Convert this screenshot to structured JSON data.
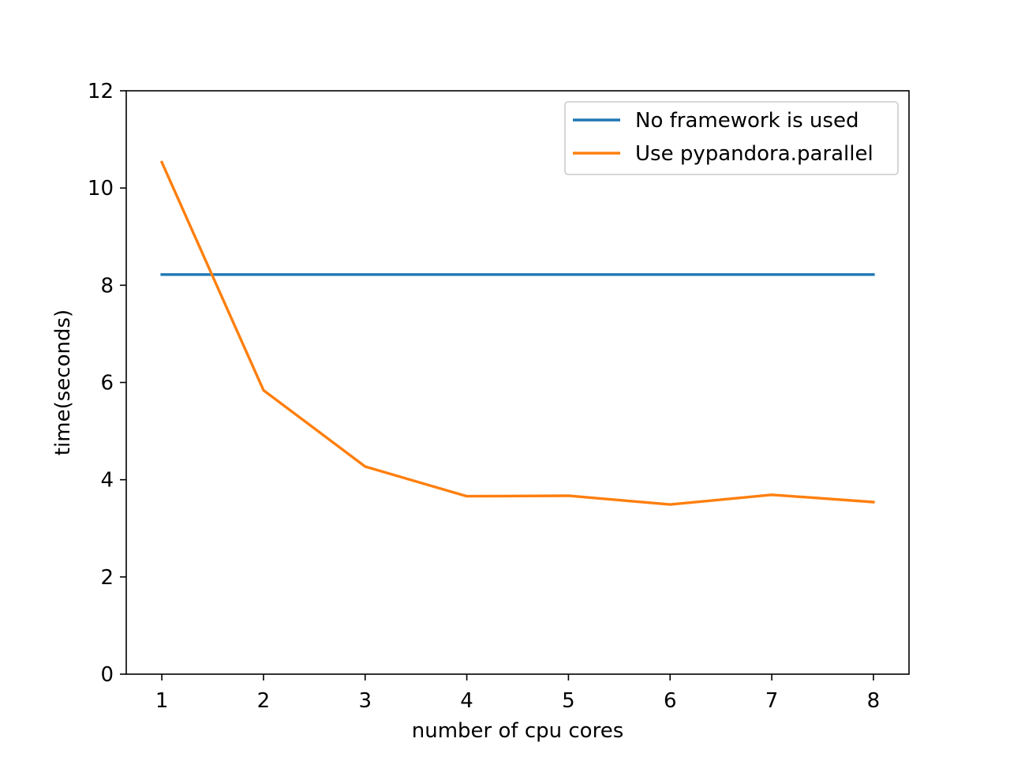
{
  "chart_data": {
    "type": "line",
    "title": "",
    "xlabel": "number of cpu cores",
    "ylabel": "time(seconds)",
    "xlim": [
      0.65,
      8.35
    ],
    "ylim": [
      0,
      12
    ],
    "xticks": [
      1,
      2,
      3,
      4,
      5,
      6,
      7,
      8
    ],
    "yticks": [
      0,
      2,
      4,
      6,
      8,
      10,
      12
    ],
    "grid": false,
    "legend_position": "top-right",
    "x": [
      1,
      2,
      3,
      4,
      5,
      6,
      7,
      8
    ],
    "series": [
      {
        "name": "No framework is used",
        "color": "#1f77b4",
        "values": [
          8.22,
          8.22,
          8.22,
          8.22,
          8.22,
          8.22,
          8.22,
          8.22
        ]
      },
      {
        "name": "Use pypandora.parallel",
        "color": "#ff7f0e",
        "values": [
          10.53,
          5.84,
          4.27,
          3.66,
          3.67,
          3.49,
          3.69,
          3.54
        ]
      }
    ]
  }
}
